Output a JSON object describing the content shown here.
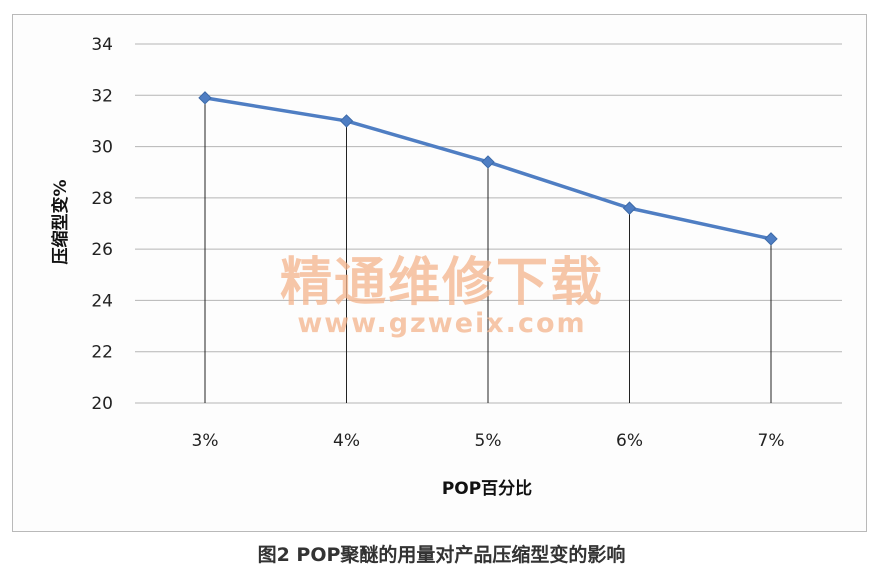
{
  "caption": "图2 POP聚醚的用量对产品压缩型变的影响",
  "watermark": {
    "main": "精通维修下载",
    "sub": "www.gzweix.com"
  },
  "chart_data": {
    "type": "line",
    "categories": [
      "3%",
      "4%",
      "5%",
      "6%",
      "7%"
    ],
    "values": [
      31.9,
      31.0,
      29.4,
      27.6,
      26.4
    ],
    "xlabel": "POP百分比",
    "ylabel": "压缩型变%",
    "ylim": [
      20,
      34
    ],
    "yticks": [
      20,
      22,
      24,
      26,
      28,
      30,
      32,
      34
    ],
    "grid": true,
    "legend": false,
    "drop_lines": true,
    "colors": {
      "series": "#4f7ec3",
      "grid": "#b5b5b5",
      "drop_line": "#222222"
    }
  }
}
